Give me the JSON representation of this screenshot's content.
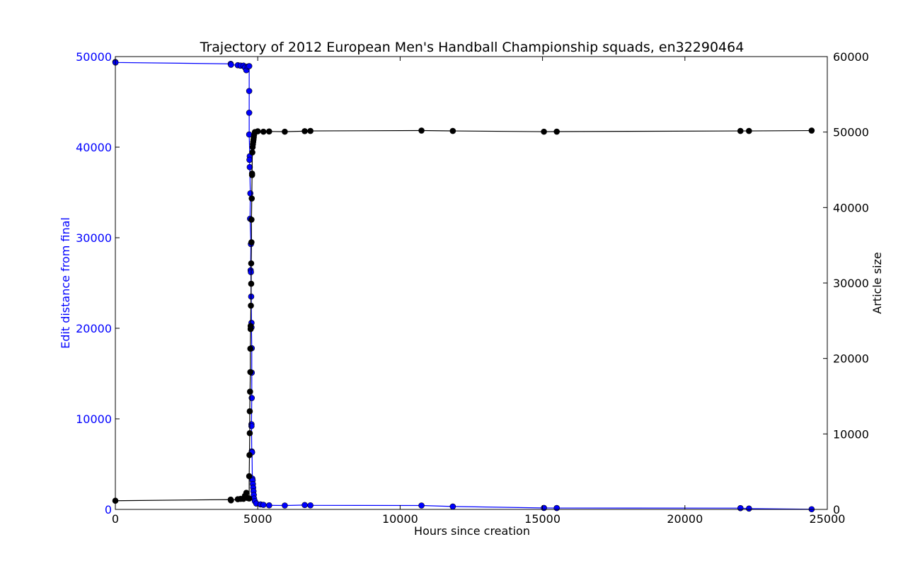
{
  "chart_data": {
    "type": "line",
    "title": "Trajectory of 2012 European Men's Handball Championship squads, en32290464",
    "xlabel": "Hours since creation",
    "ylabel_left": "Edit distance from final",
    "ylabel_right": "Article size",
    "xlim": [
      0,
      25000
    ],
    "ylim_left": [
      0,
      50000
    ],
    "ylim_right": [
      0,
      60000
    ],
    "x_ticks": [
      0,
      5000,
      10000,
      15000,
      20000,
      25000
    ],
    "y_left_ticks": [
      0,
      10000,
      20000,
      30000,
      40000,
      50000
    ],
    "y_right_ticks": [
      0,
      10000,
      20000,
      30000,
      40000,
      50000,
      60000
    ],
    "grid": false,
    "colors": {
      "edit_distance": "#0000ff",
      "article_size": "#000000",
      "axes": "#000000"
    },
    "series": [
      {
        "axis": "left",
        "color": "#0000ff",
        "points": [
          [
            0,
            49400
          ],
          [
            5,
            49350
          ],
          [
            4050,
            49200
          ],
          [
            4060,
            49100
          ],
          [
            4300,
            49050
          ],
          [
            4400,
            49000
          ],
          [
            4500,
            49000
          ],
          [
            4550,
            48800
          ],
          [
            4600,
            48500
          ],
          [
            4650,
            48900
          ],
          [
            4700,
            48950
          ],
          [
            4700,
            46200
          ],
          [
            4700,
            43800
          ],
          [
            4700,
            41400
          ],
          [
            4720,
            39000
          ],
          [
            4710,
            38600
          ],
          [
            4720,
            37800
          ],
          [
            4740,
            34900
          ],
          [
            4730,
            32100
          ],
          [
            4760,
            29300
          ],
          [
            4750,
            26400
          ],
          [
            4760,
            26200
          ],
          [
            4770,
            23500
          ],
          [
            4780,
            20600
          ],
          [
            4780,
            20100
          ],
          [
            4790,
            17800
          ],
          [
            4790,
            15100
          ],
          [
            4790,
            12300
          ],
          [
            4780,
            9400
          ],
          [
            4780,
            9200
          ],
          [
            4790,
            6400
          ],
          [
            4800,
            6300
          ],
          [
            4810,
            3400
          ],
          [
            4820,
            3200
          ],
          [
            4830,
            2800
          ],
          [
            4840,
            2400
          ],
          [
            4850,
            2000
          ],
          [
            4860,
            1600
          ],
          [
            4870,
            1200
          ],
          [
            4900,
            900
          ],
          [
            4950,
            650
          ],
          [
            5100,
            550
          ],
          [
            5200,
            500
          ],
          [
            5400,
            450
          ],
          [
            5950,
            430
          ],
          [
            6650,
            480
          ],
          [
            6850,
            450
          ],
          [
            10750,
            430
          ],
          [
            11850,
            320
          ],
          [
            15050,
            160
          ],
          [
            15500,
            150
          ],
          [
            21950,
            140
          ],
          [
            22250,
            90
          ],
          [
            24450,
            20
          ]
        ]
      },
      {
        "axis": "right",
        "color": "#000000",
        "points": [
          [
            0,
            1150
          ],
          [
            4050,
            1300
          ],
          [
            4060,
            1200
          ],
          [
            4300,
            1350
          ],
          [
            4400,
            1400
          ],
          [
            4500,
            1400
          ],
          [
            4550,
            1800
          ],
          [
            4600,
            2200
          ],
          [
            4650,
            1500
          ],
          [
            4700,
            1450
          ],
          [
            4700,
            4400
          ],
          [
            4710,
            7200
          ],
          [
            4720,
            10100
          ],
          [
            4720,
            13000
          ],
          [
            4730,
            15600
          ],
          [
            4740,
            18200
          ],
          [
            4740,
            21300
          ],
          [
            4750,
            23900
          ],
          [
            4750,
            24300
          ],
          [
            4760,
            27000
          ],
          [
            4770,
            29900
          ],
          [
            4770,
            32600
          ],
          [
            4780,
            35400
          ],
          [
            4780,
            38400
          ],
          [
            4790,
            41200
          ],
          [
            4800,
            44300
          ],
          [
            4800,
            44500
          ],
          [
            4810,
            47300
          ],
          [
            4820,
            48000
          ],
          [
            4830,
            48400
          ],
          [
            4840,
            48700
          ],
          [
            4850,
            49000
          ],
          [
            4860,
            49300
          ],
          [
            4870,
            49600
          ],
          [
            4900,
            50000
          ],
          [
            5000,
            50100
          ],
          [
            5200,
            50050
          ],
          [
            5400,
            50080
          ],
          [
            5950,
            50050
          ],
          [
            6650,
            50120
          ],
          [
            6850,
            50150
          ],
          [
            10750,
            50200
          ],
          [
            11850,
            50150
          ],
          [
            15050,
            50050
          ],
          [
            15500,
            50060
          ],
          [
            21950,
            50150
          ],
          [
            22250,
            50150
          ],
          [
            24450,
            50200
          ]
        ]
      }
    ]
  }
}
